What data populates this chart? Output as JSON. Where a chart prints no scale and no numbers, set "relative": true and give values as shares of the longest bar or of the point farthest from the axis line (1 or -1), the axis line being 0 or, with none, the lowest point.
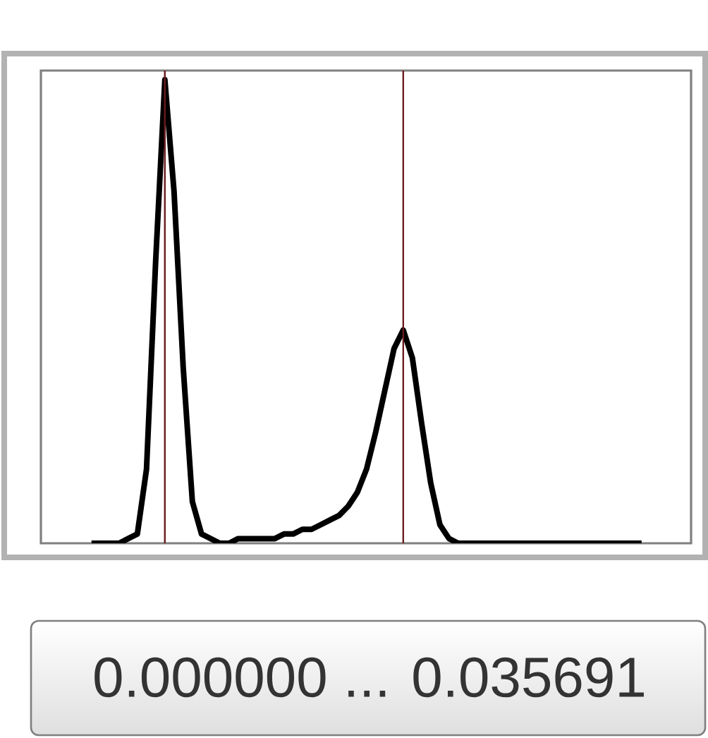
{
  "chart_data": {
    "type": "line",
    "relative": true,
    "tick_labels": false,
    "marker": "none",
    "line_style": "solid",
    "categories": [
      null,
      null,
      null,
      null,
      null,
      null,
      null,
      null,
      null,
      null,
      null,
      null,
      null,
      null,
      null,
      null,
      null,
      null,
      null,
      null,
      null,
      null,
      null,
      null,
      null,
      null,
      null,
      null,
      null,
      null,
      null,
      null,
      null,
      null,
      null,
      null,
      null,
      null,
      null,
      null,
      null,
      null,
      null,
      null,
      null,
      null,
      null,
      null,
      null,
      null,
      null,
      null,
      null,
      null,
      null,
      null,
      null,
      null,
      null,
      null,
      null
    ],
    "series": [
      {
        "color": "#000000",
        "values": [
          0,
          0,
          0,
          0,
          0.01,
          0.02,
          0.16,
          0.61,
          1,
          0.76,
          0.38,
          0.09,
          0.02,
          0.01,
          0,
          0,
          0.01,
          0.01,
          0.01,
          0.01,
          0.01,
          0.02,
          0.02,
          0.03,
          0.03,
          0.04,
          0.05,
          0.06,
          0.08,
          0.11,
          0.16,
          0.24,
          0.33,
          0.42,
          0.46,
          0.4,
          0.26,
          0.13,
          0.04,
          0.01,
          0,
          0,
          0,
          0,
          0,
          0,
          0,
          0,
          0,
          0,
          0,
          0,
          0,
          0,
          0,
          0,
          0,
          0,
          0,
          0,
          0
        ]
      }
    ],
    "annotations": [
      "0.000000 ... 0.035691"
    ]
  }
}
